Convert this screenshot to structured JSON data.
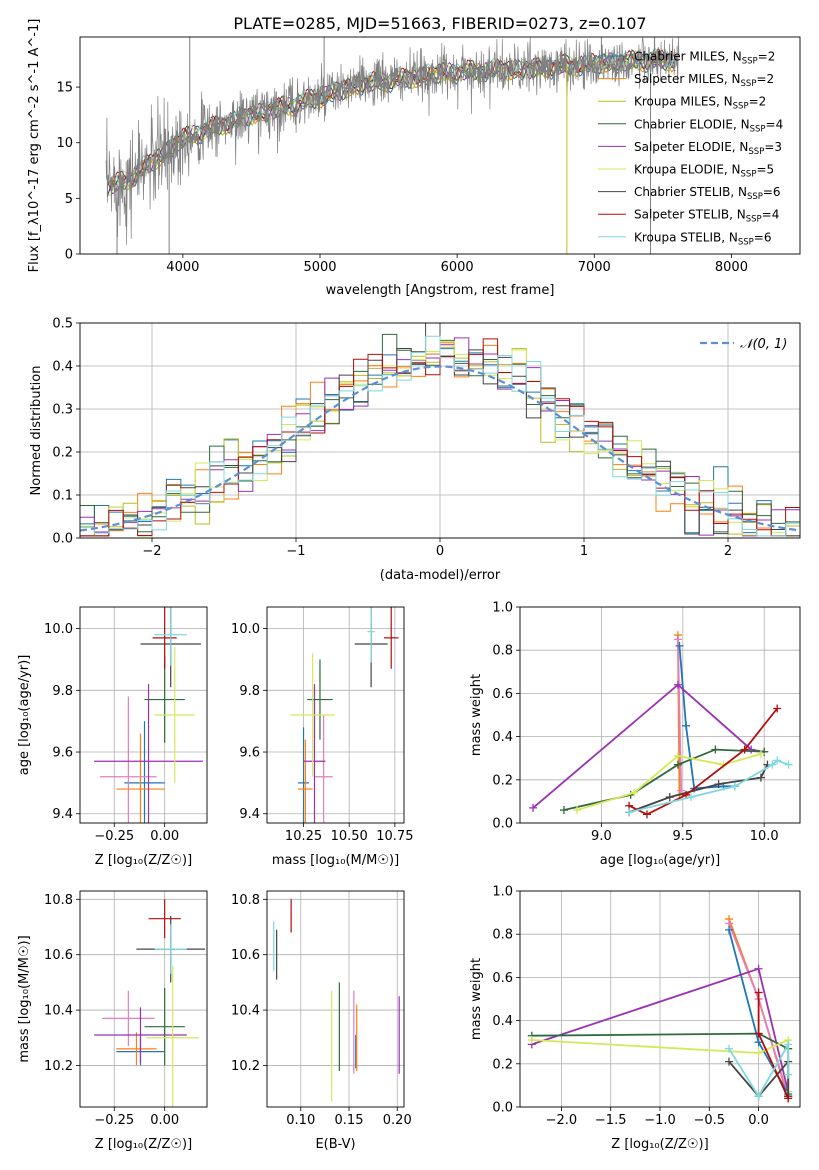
{
  "figure": {
    "title": "PLATE=0285, MJD=51663, FIBERID=0273, z=0.107"
  },
  "series_styles": [
    {
      "key": "chabrier_miles",
      "color": "#1f77b4"
    },
    {
      "key": "salpeter_miles",
      "color": "#ff7f0e"
    },
    {
      "key": "kroupa_miles",
      "color": "#bcbd22"
    },
    {
      "key": "chabrier_elodie",
      "color": "#2e6b3c"
    },
    {
      "key": "salpeter_elodie",
      "color": "#9b30b4"
    },
    {
      "key": "kroupa_elodie",
      "color": "#d6e85a"
    },
    {
      "key": "chabrier_stelib",
      "color": "#444444"
    },
    {
      "key": "salpeter_stelib",
      "color": "#b30c0c"
    },
    {
      "key": "kroupa_stelib",
      "color": "#7fd8e0"
    }
  ],
  "chart_data": [
    {
      "type": "line",
      "name": "spectrum",
      "xlabel": "wavelength [Angstrom, rest frame]",
      "ylabel": "Flux [f_λ10^-17 erg cm^-2 s^-1 A^-1]",
      "xlim": [
        3250,
        8500
      ],
      "ylim": [
        0,
        19.5
      ],
      "xticks": [
        4000,
        5000,
        6000,
        7000,
        8000
      ],
      "yticks": [
        0,
        5,
        10,
        15
      ],
      "data_color": "#808080",
      "anchors_x": [
        3450,
        3600,
        3800,
        4000,
        4200,
        4500,
        4800,
        5000,
        5300,
        5600,
        5900,
        6200,
        6500,
        6800,
        7100,
        7400,
        7600
      ],
      "anchors_y": [
        6.0,
        6.7,
        8.5,
        10.4,
        11.3,
        12.5,
        13.4,
        14.1,
        15.3,
        15.7,
        16.3,
        16.5,
        16.6,
        16.9,
        17.2,
        17.4,
        17.4
      ],
      "legend": [
        {
          "label": "Chabrier MILES, N",
          "sub": "SSP",
          "tail": "=2",
          "color": "#1f77b4"
        },
        {
          "label": "Salpeter MILES, N",
          "sub": "SSP",
          "tail": "=2",
          "color": "#ff7f0e"
        },
        {
          "label": "Kroupa MILES, N",
          "sub": "SSP",
          "tail": "=2",
          "color": "#bcbd22"
        },
        {
          "label": "Chabrier ELODIE, N",
          "sub": "SSP",
          "tail": "=4",
          "color": "#2e6b3c"
        },
        {
          "label": "Salpeter ELODIE, N",
          "sub": "SSP",
          "tail": "=3",
          "color": "#9b30b4"
        },
        {
          "label": "Kroupa ELODIE, N",
          "sub": "SSP",
          "tail": "=5",
          "color": "#d6e85a"
        },
        {
          "label": "Chabrier STELIB, N",
          "sub": "SSP",
          "tail": "=6",
          "color": "#444444"
        },
        {
          "label": "Salpeter STELIB, N",
          "sub": "SSP",
          "tail": "=4",
          "color": "#b30c0c"
        },
        {
          "label": "Kroupa STELIB, N",
          "sub": "SSP",
          "tail": "=6",
          "color": "#7fd8e0"
        }
      ]
    },
    {
      "type": "line",
      "name": "residual-histogram",
      "xlabel": "(data-model)/error",
      "ylabel": "Normed distribution",
      "xlim": [
        -2.5,
        2.5
      ],
      "ylim": [
        0,
        0.5
      ],
      "xticks": [
        -2,
        -1,
        0,
        1,
        2
      ],
      "xtick_labels": [
        "−2",
        "−1",
        "0",
        "1",
        "2"
      ],
      "yticks": [
        0,
        0.1,
        0.2,
        0.3,
        0.4,
        0.5
      ],
      "ytick_labels": [
        "0.0",
        "0.1",
        "0.2",
        "0.3",
        "0.4",
        "0.5"
      ],
      "bins": [
        -2.5,
        2.5,
        50
      ],
      "normal_label": "𝒩(0, 1)",
      "normal_color": "#5b8fd6"
    },
    {
      "type": "scatter",
      "name": "age-vs-Z",
      "xlabel": "Z [log₁₀(Z/Z☉)]",
      "ylabel": "age  [log₁₀(age/yr)]",
      "xlim": [
        -0.42,
        0.21
      ],
      "ylim": [
        9.37,
        10.07
      ],
      "xticks": [
        -0.25,
        0.0
      ],
      "xtick_labels": [
        "−0.25",
        "0.00"
      ],
      "yticks": [
        9.4,
        9.6,
        9.8,
        10.0
      ],
      "ytick_labels": [
        "9.4",
        "9.6",
        "9.8",
        "10.0"
      ],
      "points": [
        {
          "x": -0.1,
          "y": 9.5,
          "xerr": 0.1,
          "yerr": 0.2,
          "color": "#1f77b4"
        },
        {
          "x": -0.12,
          "y": 9.48,
          "xerr": 0.12,
          "yerr": 0.18,
          "color": "#ff7f0e"
        },
        {
          "x": -0.18,
          "y": 9.52,
          "xerr": 0.14,
          "yerr": 0.26,
          "color": "#e17fbf"
        },
        {
          "x": -0.08,
          "y": 9.57,
          "xerr": 0.27,
          "yerr": 0.25,
          "color": "#9b30b4"
        },
        {
          "x": 0.0,
          "y": 9.77,
          "xerr": 0.1,
          "yerr": 0.14,
          "color": "#2e6b3c"
        },
        {
          "x": 0.05,
          "y": 9.72,
          "xerr": 0.1,
          "yerr": 0.22,
          "color": "#d6e85a"
        },
        {
          "x": 0.03,
          "y": 9.95,
          "xerr": 0.15,
          "yerr": 0.14,
          "color": "#444444"
        },
        {
          "x": 0.0,
          "y": 9.97,
          "xerr": 0.06,
          "yerr": 0.1,
          "color": "#b30c0c"
        },
        {
          "x": 0.03,
          "y": 9.98,
          "xerr": 0.08,
          "yerr": 0.1,
          "color": "#7fd8e0"
        }
      ]
    },
    {
      "type": "scatter",
      "name": "age-vs-mass",
      "xlabel": "mass [log₁₀(M/M☉)]",
      "xlim": [
        10.05,
        10.8
      ],
      "ylim": [
        9.37,
        10.07
      ],
      "xticks": [
        10.25,
        10.5,
        10.75
      ],
      "xtick_labels": [
        "10.25",
        "10.50",
        "10.75"
      ],
      "yticks": [
        9.4,
        9.6,
        9.8,
        10.0
      ],
      "ytick_labels": [
        "9.4",
        "9.6",
        "9.8",
        "10.0"
      ],
      "points": [
        {
          "x": 10.25,
          "y": 9.5,
          "xerr": 0.03,
          "yerr": 0.18,
          "color": "#1f77b4"
        },
        {
          "x": 10.26,
          "y": 9.48,
          "xerr": 0.04,
          "yerr": 0.16,
          "color": "#ff7f0e"
        },
        {
          "x": 10.36,
          "y": 9.52,
          "xerr": 0.05,
          "yerr": 0.2,
          "color": "#e17fbf"
        },
        {
          "x": 10.31,
          "y": 9.57,
          "xerr": 0.06,
          "yerr": 0.25,
          "color": "#9b30b4"
        },
        {
          "x": 10.34,
          "y": 9.77,
          "xerr": 0.07,
          "yerr": 0.13,
          "color": "#2e6b3c"
        },
        {
          "x": 10.3,
          "y": 9.72,
          "xerr": 0.12,
          "yerr": 0.2,
          "color": "#d6e85a"
        },
        {
          "x": 10.62,
          "y": 9.95,
          "xerr": 0.09,
          "yerr": 0.14,
          "color": "#444444"
        },
        {
          "x": 10.73,
          "y": 9.97,
          "xerr": 0.04,
          "yerr": 0.1,
          "color": "#b30c0c"
        },
        {
          "x": 10.62,
          "y": 9.99,
          "xerr": 0.02,
          "yerr": 0.1,
          "color": "#7fd8e0"
        }
      ]
    },
    {
      "type": "line",
      "name": "mass-weight-vs-age",
      "xlabel": "age  [log₁₀(age/yr)]",
      "ylabel": "mass weight",
      "xlim": [
        8.5,
        10.22
      ],
      "ylim": [
        0,
        1
      ],
      "xticks": [
        9.0,
        9.5,
        10.0
      ],
      "xtick_labels": [
        "9.0",
        "9.5",
        "10.0"
      ],
      "yticks": [
        0,
        0.2,
        0.4,
        0.6,
        0.8,
        1.0
      ],
      "ytick_labels": [
        "0.0",
        "0.2",
        "0.4",
        "0.6",
        "0.8",
        "1.0"
      ],
      "series": [
        {
          "color": "#ff7f0e",
          "x": [
            9.47,
            9.48
          ],
          "y": [
            0.87,
            0.13
          ]
        },
        {
          "color": "#e17fbf",
          "x": [
            9.47,
            9.49
          ],
          "y": [
            0.85,
            0.15
          ]
        },
        {
          "color": "#1f77b4",
          "x": [
            9.48,
            9.52,
            9.57,
            9.75,
            9.82
          ],
          "y": [
            0.82,
            0.45,
            0.16,
            0.17,
            0.17
          ]
        },
        {
          "color": "#9b30b4",
          "x": [
            8.58,
            9.47,
            9.92,
            10.0
          ],
          "y": [
            0.07,
            0.64,
            0.34,
            0.33
          ]
        },
        {
          "color": "#2e6b3c",
          "x": [
            8.77,
            9.18,
            9.47,
            9.7,
            10.0
          ],
          "y": [
            0.06,
            0.13,
            0.27,
            0.34,
            0.33
          ]
        },
        {
          "color": "#d6e85a",
          "x": [
            8.85,
            9.2,
            9.47,
            9.75,
            9.98
          ],
          "y": [
            0.06,
            0.14,
            0.31,
            0.27,
            0.32
          ]
        },
        {
          "color": "#444444",
          "x": [
            9.17,
            9.42,
            9.72,
            9.98,
            10.02
          ],
          "y": [
            0.05,
            0.12,
            0.18,
            0.21,
            0.27
          ]
        },
        {
          "color": "#b30c0c",
          "x": [
            9.17,
            9.28,
            9.52,
            9.88,
            10.08
          ],
          "y": [
            0.08,
            0.04,
            0.13,
            0.34,
            0.53
          ]
        },
        {
          "color": "#7fd8e0",
          "x": [
            9.17,
            9.55,
            9.82,
            10.05,
            10.08,
            10.15
          ],
          "y": [
            0.05,
            0.12,
            0.17,
            0.27,
            0.29,
            0.27
          ]
        }
      ]
    },
    {
      "type": "scatter",
      "name": "mass-vs-Z",
      "xlabel": "Z [log₁₀(Z/Z☉)]",
      "ylabel": "mass [log₁₀(M/M☉)]",
      "xlim": [
        -0.42,
        0.21
      ],
      "ylim": [
        10.05,
        10.83
      ],
      "xticks": [
        -0.25,
        0.0
      ],
      "xtick_labels": [
        "−0.25",
        "0.00"
      ],
      "yticks": [
        10.2,
        10.4,
        10.6,
        10.8
      ],
      "ytick_labels": [
        "10.2",
        "10.4",
        "10.6",
        "10.8"
      ],
      "points": [
        {
          "x": -0.12,
          "y": 10.25,
          "xerr": 0.12,
          "yerr": 0.05,
          "color": "#1f77b4"
        },
        {
          "x": -0.14,
          "y": 10.26,
          "xerr": 0.1,
          "yerr": 0.06,
          "color": "#ff7f0e"
        },
        {
          "x": -0.18,
          "y": 10.37,
          "xerr": 0.13,
          "yerr": 0.1,
          "color": "#e17fbf"
        },
        {
          "x": -0.12,
          "y": 10.31,
          "xerr": 0.23,
          "yerr": 0.1,
          "color": "#9b30b4"
        },
        {
          "x": 0.0,
          "y": 10.34,
          "xerr": 0.1,
          "yerr": 0.14,
          "color": "#2e6b3c"
        },
        {
          "x": 0.04,
          "y": 10.3,
          "xerr": 0.13,
          "yerr": 0.26,
          "color": "#d6e85a"
        },
        {
          "x": 0.03,
          "y": 10.62,
          "xerr": 0.17,
          "yerr": 0.12,
          "color": "#444444"
        },
        {
          "x": 0.0,
          "y": 10.73,
          "xerr": 0.08,
          "yerr": 0.07,
          "color": "#b30c0c"
        },
        {
          "x": 0.03,
          "y": 10.62,
          "xerr": 0.08,
          "yerr": 0.09,
          "color": "#7fd8e0"
        }
      ]
    },
    {
      "type": "scatter",
      "name": "mass-vs-ebv",
      "xlabel": "E(B-V)",
      "xlim": [
        0.065,
        0.207
      ],
      "ylim": [
        10.05,
        10.83
      ],
      "xticks": [
        0.1,
        0.15,
        0.2
      ],
      "xtick_labels": [
        "0.10",
        "0.15",
        "0.20"
      ],
      "yticks": [
        10.2,
        10.4,
        10.6,
        10.8
      ],
      "ytick_labels": [
        "10.2",
        "10.4",
        "10.6",
        "10.8"
      ],
      "points": [
        {
          "x": 0.072,
          "y": 10.63,
          "yerr": 0.09,
          "color": "#7fd8e0"
        },
        {
          "x": 0.075,
          "y": 10.6,
          "yerr": 0.09,
          "color": "#444444"
        },
        {
          "x": 0.09,
          "y": 10.74,
          "yerr": 0.06,
          "color": "#b30c0c"
        },
        {
          "x": 0.132,
          "y": 10.27,
          "yerr": 0.2,
          "color": "#d6e85a"
        },
        {
          "x": 0.14,
          "y": 10.34,
          "yerr": 0.16,
          "color": "#2e6b3c"
        },
        {
          "x": 0.155,
          "y": 10.32,
          "yerr": 0.15,
          "color": "#e17fbf"
        },
        {
          "x": 0.157,
          "y": 10.25,
          "yerr": 0.06,
          "color": "#1f77b4"
        },
        {
          "x": 0.158,
          "y": 10.3,
          "yerr": 0.12,
          "color": "#ff7f0e"
        },
        {
          "x": 0.202,
          "y": 10.31,
          "yerr": 0.14,
          "color": "#9b30b4"
        }
      ]
    },
    {
      "type": "line",
      "name": "mass-weight-vs-Z",
      "xlabel": "Z [log₁₀(Z/Z☉)]",
      "ylabel": "mass weight",
      "xlim": [
        -2.42,
        0.42
      ],
      "ylim": [
        0,
        1
      ],
      "xticks": [
        -2.0,
        -1.5,
        -1.0,
        -0.5,
        0.0
      ],
      "xtick_labels": [
        "−2.0",
        "−1.5",
        "−1.0",
        "−0.5",
        "0.0"
      ],
      "yticks": [
        0,
        0.2,
        0.4,
        0.6,
        0.8,
        1.0
      ],
      "ytick_labels": [
        "0.0",
        "0.2",
        "0.4",
        "0.6",
        "0.8",
        "1.0"
      ],
      "series": [
        {
          "color": "#ff7f0e",
          "x": [
            -0.3,
            0.0,
            0.3
          ],
          "y": [
            0.87,
            0.5,
            0.04
          ]
        },
        {
          "color": "#e17fbf",
          "x": [
            -0.3,
            0.0,
            0.3
          ],
          "y": [
            0.85,
            0.5,
            0.05
          ]
        },
        {
          "color": "#1f77b4",
          "x": [
            -0.3,
            0.0,
            0.3
          ],
          "y": [
            0.82,
            0.3,
            0.06
          ]
        },
        {
          "color": "#9b30b4",
          "x": [
            -2.3,
            0.0,
            0.3
          ],
          "y": [
            0.29,
            0.64,
            0.07
          ]
        },
        {
          "color": "#2e6b3c",
          "x": [
            -2.3,
            0.0,
            0.3,
            0.3
          ],
          "y": [
            0.33,
            0.34,
            0.27,
            0.05
          ]
        },
        {
          "color": "#d6e85a",
          "x": [
            -2.3,
            0.0,
            0.3,
            0.3
          ],
          "y": [
            0.31,
            0.25,
            0.31,
            0.07
          ]
        },
        {
          "color": "#444444",
          "x": [
            -0.3,
            0.0,
            0.3,
            0.3
          ],
          "y": [
            0.21,
            0.05,
            0.21,
            0.05
          ]
        },
        {
          "color": "#b30c0c",
          "x": [
            0.0,
            0.0,
            0.3
          ],
          "y": [
            0.53,
            0.34,
            0.04
          ]
        },
        {
          "color": "#7fd8e0",
          "x": [
            -0.3,
            0.0,
            0.3,
            0.3
          ],
          "y": [
            0.27,
            0.05,
            0.29,
            0.15
          ]
        }
      ]
    }
  ]
}
